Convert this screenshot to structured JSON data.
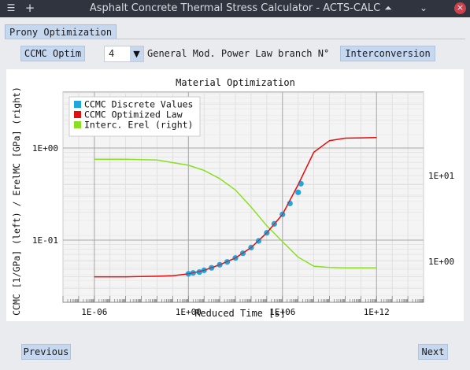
{
  "window": {
    "title": "Asphalt Concrete Thermal Stress Calculator - ACTS-CALC",
    "menu_glyph": "☰",
    "add_glyph": "+",
    "up_glyph": "⏶",
    "min_glyph": "⌄",
    "close_glyph": "×"
  },
  "tab": {
    "label": "Prony Optimization"
  },
  "controls": {
    "model_button": "CCMC Optim",
    "branch_value": "4",
    "branch_label": "General Mod. Power Law branch N°",
    "interconversion_button": "Interconversion"
  },
  "chart_data": {
    "type": "scatter",
    "title": "Material Optimization",
    "xlabel": "Reduced Time [s]",
    "ylabel_left": "CCMC [1/GPa] (left) / ErelMC [GPa] (right)",
    "x_scale": "log",
    "y_scale": "log",
    "xlim": [
      1e-08,
      1000000000000000.0
    ],
    "x_ticks": [
      "1E-06",
      "1E+00",
      "1E+06",
      "1E+12"
    ],
    "y_left_ticks": [
      "1E+00",
      "1E-01"
    ],
    "y_right_ticks": [
      "1E+01",
      "1E+00"
    ],
    "legend_position": "top-left",
    "grid": true,
    "series": [
      {
        "name": "CCMC Discrete Values",
        "axis": "left",
        "color": "#1fa6e0",
        "x": [
          1.0,
          2.0,
          5.0,
          10.0,
          30.0,
          100.0,
          300.0,
          1000.0,
          3000.0,
          10000.0,
          30000.0,
          100000.0,
          300000.0,
          1000000.0,
          3000000.0,
          10000000.0,
          15000000.0
        ],
        "y": [
          0.043,
          0.044,
          0.045,
          0.047,
          0.05,
          0.054,
          0.058,
          0.064,
          0.072,
          0.083,
          0.098,
          0.12,
          0.15,
          0.19,
          0.25,
          0.33,
          0.41
        ]
      },
      {
        "name": "CCMC Optimized Law",
        "axis": "left",
        "color": "#e01010",
        "x": [
          1e-06,
          0.0001,
          0.01,
          0.1,
          1.0,
          10.0,
          100.0,
          1000.0,
          10000.0,
          100000.0,
          1000000.0,
          10000000.0,
          100000000.0,
          1000000000.0,
          10000000000.0,
          1000000000000.0
        ],
        "y": [
          0.04,
          0.04,
          0.0405,
          0.041,
          0.043,
          0.047,
          0.054,
          0.064,
          0.083,
          0.12,
          0.19,
          0.4,
          0.9,
          1.2,
          1.28,
          1.3
        ]
      },
      {
        "name": "Interc. Erel (right)",
        "axis": "right",
        "color": "#88e020",
        "x": [
          1e-06,
          0.0001,
          0.01,
          1.0,
          10.0,
          100.0,
          1000.0,
          10000.0,
          100000.0,
          1000000.0,
          10000000.0,
          100000000.0,
          1000000000.0,
          10000000000.0,
          1000000000000.0
        ],
        "y": [
          15.5,
          15.5,
          15.2,
          13.2,
          11.5,
          9.2,
          6.8,
          4.3,
          2.6,
          1.7,
          1.12,
          0.88,
          0.85,
          0.84,
          0.84
        ]
      }
    ]
  },
  "footer": {
    "previous_button": "Previous",
    "next_button": "Next"
  }
}
